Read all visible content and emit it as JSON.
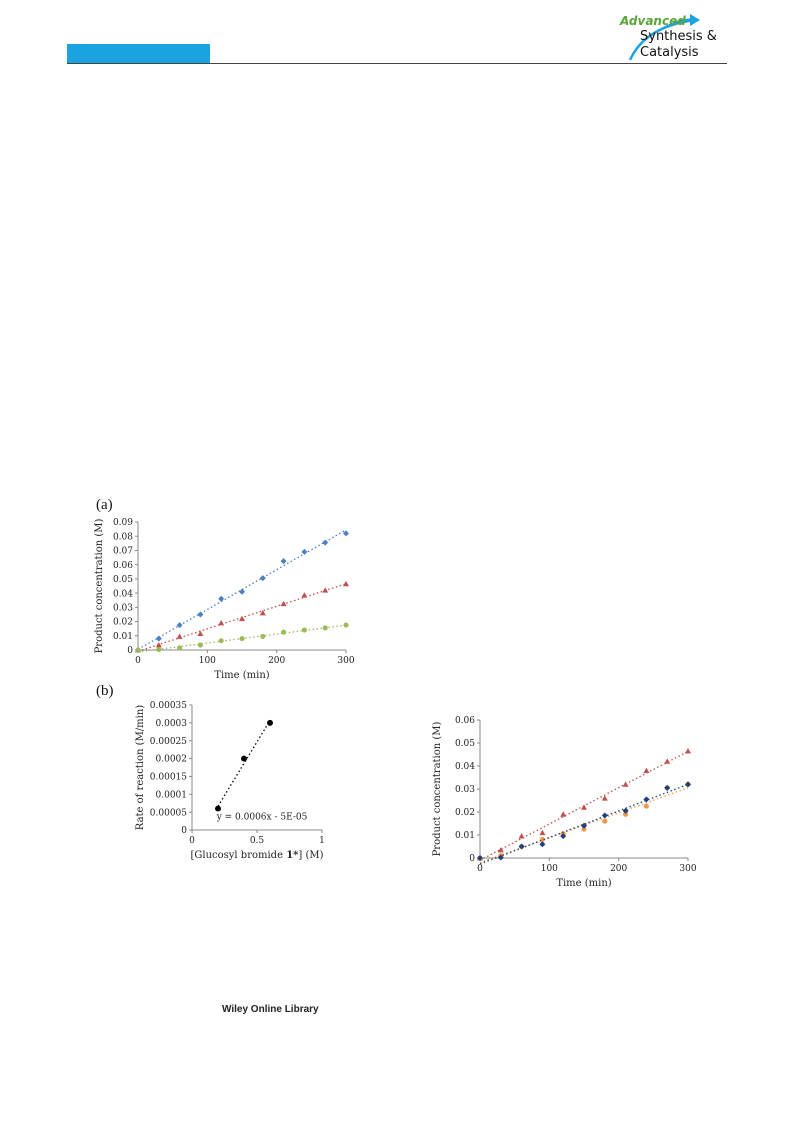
{
  "header": {
    "brand_color": "#1aa3e0",
    "logo": {
      "line1": "Advanced",
      "line2": "Synthesis &",
      "line3": "Catalysis"
    }
  },
  "figure": {
    "panel_a_label": "(a)",
    "panel_b_label": "(b)"
  },
  "footer": {
    "text": "Wiley Online Library"
  },
  "chart_data": [
    {
      "id": "chart-a",
      "type": "scatter",
      "xlabel": "Time (min)",
      "ylabel": "Product concentration (M)",
      "xlim": [
        0,
        300
      ],
      "ylim": [
        0,
        0.09
      ],
      "xticks": [
        0,
        100,
        200,
        300
      ],
      "yticks": [
        0,
        0.01,
        0.02,
        0.03,
        0.04,
        0.05,
        0.06,
        0.07,
        0.08,
        0.09
      ],
      "trendlines": "dotted",
      "series": [
        {
          "color": "#4a7fc1",
          "marker": "diamond",
          "x": [
            0,
            30,
            60,
            90,
            120,
            150,
            180,
            210,
            240,
            270,
            300
          ],
          "y": [
            0,
            0.008,
            0.0175,
            0.025,
            0.036,
            0.041,
            0.0505,
            0.0625,
            0.069,
            0.0755,
            0.082
          ]
        },
        {
          "color": "#c0504d",
          "marker": "triangle",
          "x": [
            0,
            30,
            60,
            90,
            120,
            150,
            180,
            210,
            240,
            270,
            300
          ],
          "y": [
            0,
            0.0035,
            0.0095,
            0.0115,
            0.019,
            0.022,
            0.026,
            0.0325,
            0.0385,
            0.042,
            0.0465
          ]
        },
        {
          "color": "#9bbb59",
          "marker": "circle",
          "x": [
            0,
            30,
            60,
            90,
            120,
            150,
            180,
            210,
            240,
            270,
            300
          ],
          "y": [
            0,
            0.0003,
            0.0015,
            0.0035,
            0.0065,
            0.008,
            0.0095,
            0.0125,
            0.014,
            0.0155,
            0.0175
          ]
        }
      ]
    },
    {
      "id": "chart-b1",
      "type": "scatter",
      "xlabel_pre": "[Glucosyl bromide ",
      "xlabel_bold": "1*",
      "xlabel_post": "] (M)",
      "ylabel": "Rate of reaction (M/min)",
      "xlim": [
        0,
        1
      ],
      "ylim": [
        0,
        0.00035
      ],
      "xticks": [
        "0",
        "0.5",
        "1"
      ],
      "yticks": [
        "0",
        "0.00005",
        "0.0001",
        "0.00015",
        "0.0002",
        "0.00025",
        "0.0003",
        "0.00035"
      ],
      "equation": "y = 0.0006x - 5E-05",
      "series": [
        {
          "color": "#000000",
          "marker": "circle",
          "x": [
            0.2,
            0.4,
            0.6
          ],
          "y": [
            6e-05,
            0.0002,
            0.0003
          ]
        }
      ]
    },
    {
      "id": "chart-b2",
      "type": "scatter",
      "xlabel": "Time (min)",
      "ylabel": "Product concentration (M)",
      "xlim": [
        0,
        300
      ],
      "ylim": [
        0,
        0.06
      ],
      "xticks": [
        0,
        100,
        200,
        300
      ],
      "yticks": [
        0,
        0.01,
        0.02,
        0.03,
        0.04,
        0.05,
        0.06
      ],
      "trendlines": "dotted",
      "series": [
        {
          "color": "#c0504d",
          "marker": "triangle",
          "x": [
            0,
            30,
            60,
            90,
            120,
            150,
            180,
            210,
            240,
            270,
            300
          ],
          "y": [
            0,
            0.0035,
            0.0095,
            0.011,
            0.019,
            0.022,
            0.026,
            0.032,
            0.038,
            0.042,
            0.0465
          ]
        },
        {
          "color": "#f79646",
          "marker": "circle",
          "x": [
            0,
            30,
            60,
            90,
            120,
            150,
            180,
            210,
            240,
            270,
            300
          ],
          "y": [
            0,
            0.001,
            0.005,
            0.008,
            0.0105,
            0.0125,
            0.016,
            0.019,
            0.0225,
            0.0305,
            0.032
          ]
        },
        {
          "color": "#1f3f7a",
          "marker": "diamond",
          "x": [
            0,
            30,
            60,
            90,
            120,
            150,
            180,
            210,
            240,
            270,
            300
          ],
          "y": [
            0,
            0.0002,
            0.005,
            0.006,
            0.0095,
            0.014,
            0.0185,
            0.0205,
            0.0255,
            0.0305,
            0.032
          ]
        }
      ]
    }
  ]
}
